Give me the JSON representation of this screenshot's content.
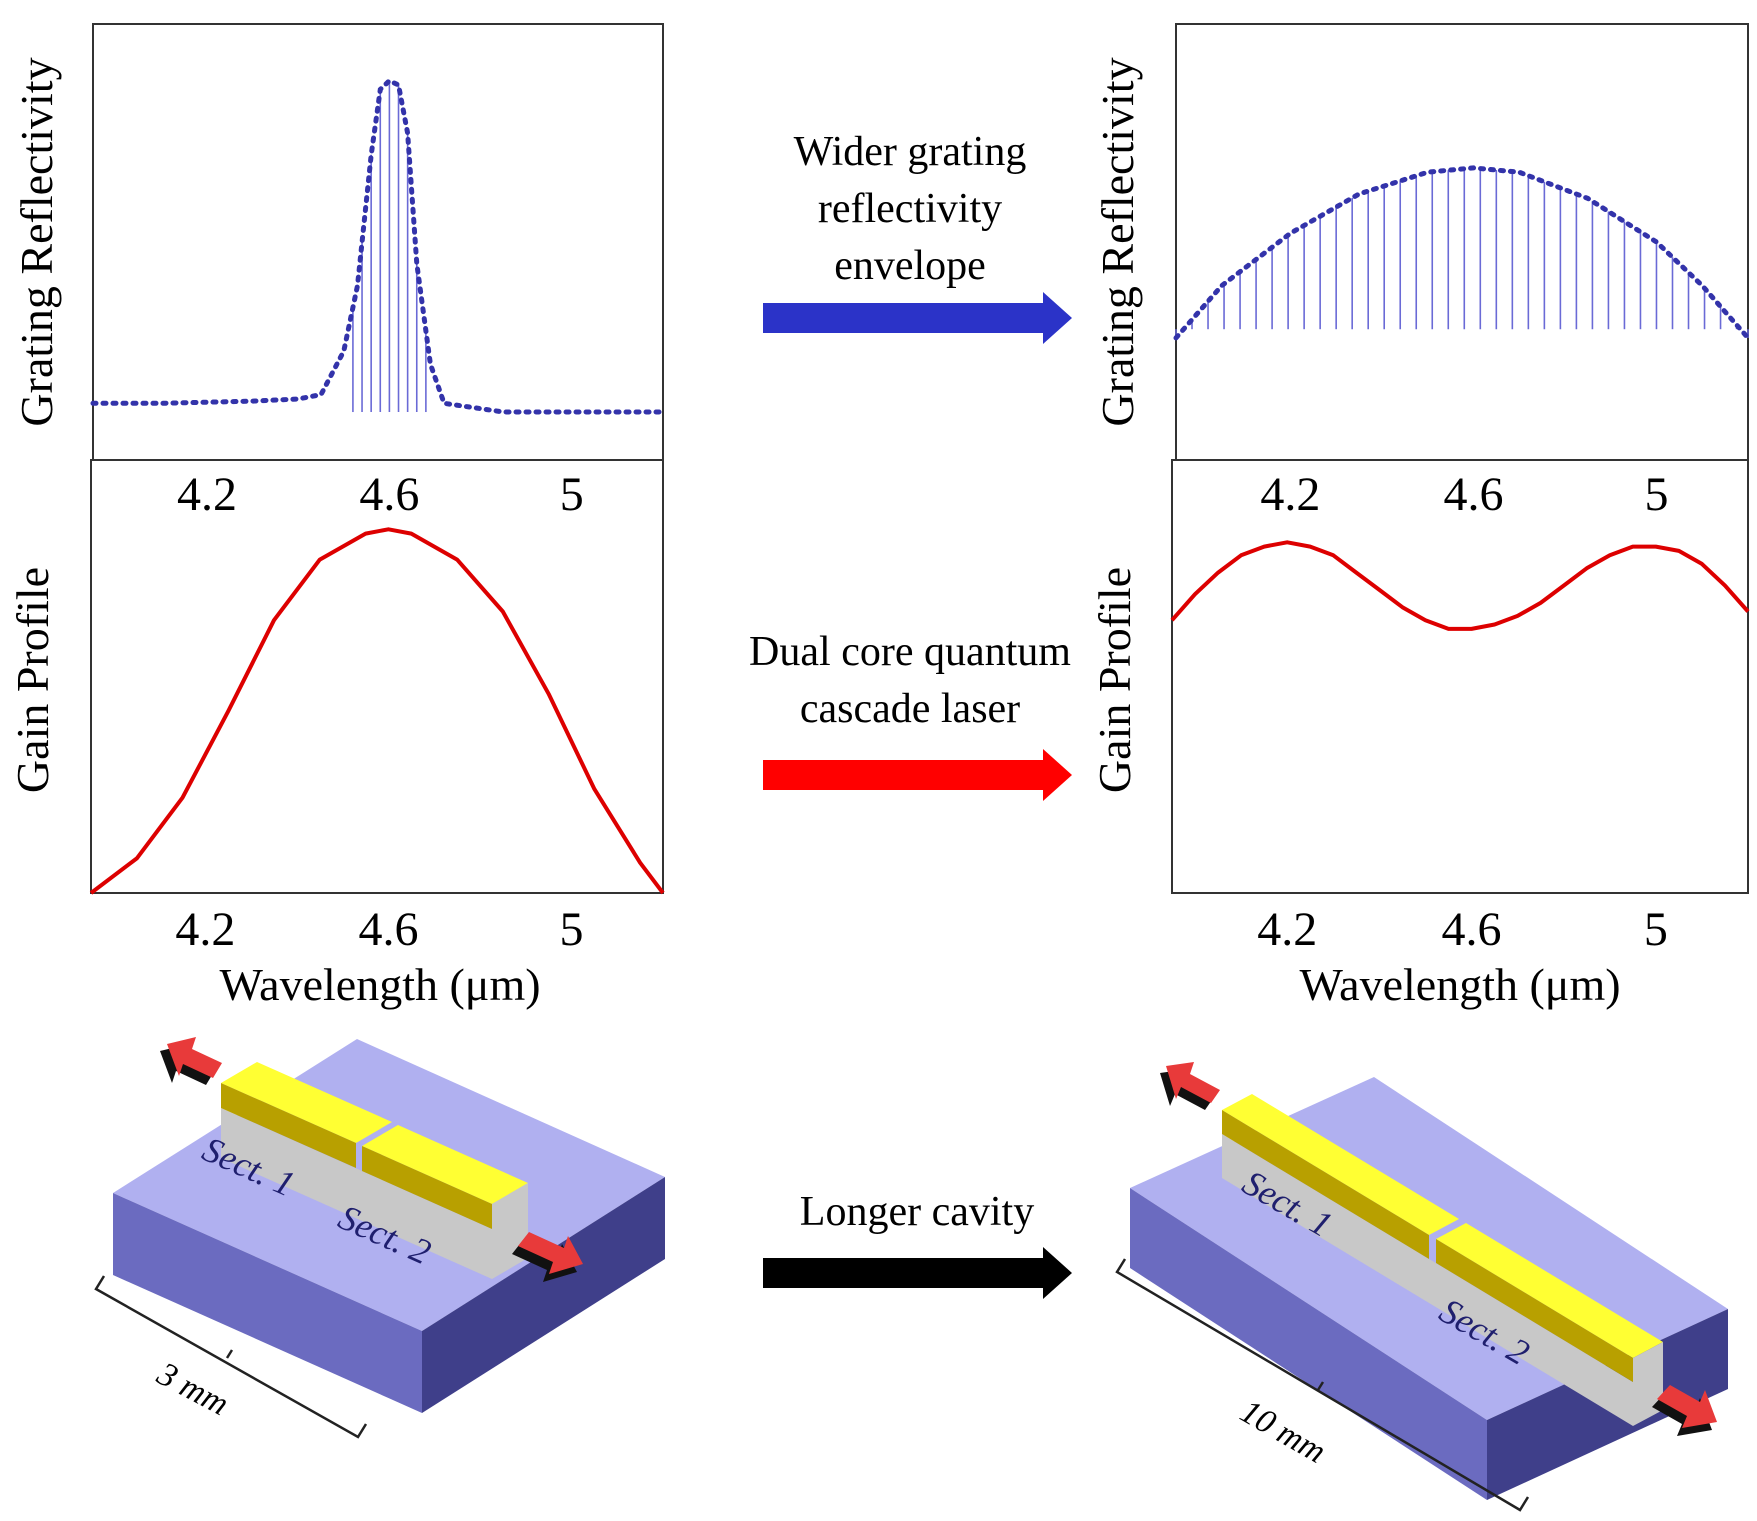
{
  "colors": {
    "dotted_envelope": "#3333aa",
    "stems": "#6a6ad6",
    "gain_curve": "#dd0000",
    "arrow_blue": "#2b33c8",
    "arrow_red": "#ff0000",
    "arrow_black": "#000000",
    "substrate_top": "#b0b0f0",
    "substrate_front": "#6b6bc0",
    "substrate_side": "#3f3f8a",
    "ridge_top": "#ffff33",
    "ridge_side": "#c8c8c8",
    "ridge_front": "#b8a000",
    "output_arrow": "#e83a3a"
  },
  "labels": {
    "grating_reflectivity": "Grating Reflectivity",
    "gain_profile": "Gain Profile",
    "wavelength": "Wavelength  (μm)",
    "arrow1": [
      "Wider grating",
      "reflectivity",
      "envelope"
    ],
    "arrow2": [
      "Dual core quantum",
      "cascade laser"
    ],
    "arrow3": "Longer cavity",
    "sect1": "Sect. 1",
    "sect2": "Sect. 2",
    "left_length": "3 mm",
    "right_length": "10 mm"
  },
  "chart_data": [
    {
      "id": "left-reflectivity",
      "type": "line",
      "style": "dotted envelope with vertical stems",
      "ylabel": "Grating Reflectivity",
      "xlabel": "",
      "ticks": [
        4.2,
        4.6,
        5
      ],
      "xlim": [
        3.95,
        5.2
      ],
      "ylim": [
        0,
        1
      ],
      "envelope": [
        [
          3.95,
          0.13
        ],
        [
          4.1,
          0.13
        ],
        [
          4.3,
          0.135
        ],
        [
          4.4,
          0.14
        ],
        [
          4.45,
          0.15
        ],
        [
          4.5,
          0.25
        ],
        [
          4.53,
          0.4
        ],
        [
          4.56,
          0.7
        ],
        [
          4.58,
          0.85
        ],
        [
          4.6,
          0.87
        ],
        [
          4.62,
          0.86
        ],
        [
          4.64,
          0.75
        ],
        [
          4.66,
          0.45
        ],
        [
          4.69,
          0.22
        ],
        [
          4.72,
          0.13
        ],
        [
          4.85,
          0.11
        ],
        [
          5.2,
          0.11
        ]
      ],
      "stems_x": [
        4.52,
        4.54,
        4.56,
        4.58,
        4.6,
        4.62,
        4.64,
        4.66,
        4.68
      ]
    },
    {
      "id": "right-reflectivity",
      "type": "line",
      "style": "dotted envelope with vertical stems",
      "ylabel": "Grating Reflectivity",
      "xlabel": "",
      "ticks": [
        4.2,
        4.6,
        5
      ],
      "xlim": [
        3.95,
        5.2
      ],
      "ylim": [
        0,
        1
      ],
      "envelope": [
        [
          3.95,
          0.28
        ],
        [
          4.05,
          0.4
        ],
        [
          4.2,
          0.52
        ],
        [
          4.35,
          0.61
        ],
        [
          4.5,
          0.66
        ],
        [
          4.6,
          0.67
        ],
        [
          4.7,
          0.66
        ],
        [
          4.85,
          0.6
        ],
        [
          5.0,
          0.5
        ],
        [
          5.1,
          0.4
        ],
        [
          5.2,
          0.28
        ]
      ],
      "stems_x": [
        3.95,
        3.985,
        4.02,
        4.055,
        4.09,
        4.125,
        4.16,
        4.195,
        4.23,
        4.265,
        4.3,
        4.335,
        4.37,
        4.405,
        4.44,
        4.475,
        4.51,
        4.545,
        4.58,
        4.615,
        4.65,
        4.685,
        4.72,
        4.755,
        4.79,
        4.825,
        4.86,
        4.895,
        4.93,
        4.965,
        5.0,
        5.035,
        5.07,
        5.105,
        5.14,
        5.175,
        5.2
      ]
    },
    {
      "id": "left-gain",
      "type": "line",
      "ylabel": "Gain Profile",
      "xlabel": "Wavelength  (μm)",
      "ticks": [
        4.2,
        4.6,
        5
      ],
      "xlim": [
        3.95,
        5.2
      ],
      "ylim": [
        0,
        1
      ],
      "x": [
        3.95,
        4.05,
        4.15,
        4.25,
        4.35,
        4.45,
        4.55,
        4.6,
        4.65,
        4.75,
        4.85,
        4.95,
        5.05,
        5.15,
        5.2
      ],
      "y": [
        0.0,
        0.08,
        0.22,
        0.42,
        0.63,
        0.77,
        0.83,
        0.84,
        0.83,
        0.77,
        0.65,
        0.46,
        0.24,
        0.07,
        0.0
      ]
    },
    {
      "id": "right-gain",
      "type": "line",
      "ylabel": "Gain Profile",
      "xlabel": "Wavelength  (μm)",
      "ticks": [
        4.2,
        4.6,
        5
      ],
      "xlim": [
        3.95,
        5.2
      ],
      "ylim": [
        0,
        1
      ],
      "x": [
        3.95,
        4.0,
        4.05,
        4.1,
        4.15,
        4.2,
        4.25,
        4.3,
        4.35,
        4.4,
        4.45,
        4.5,
        4.55,
        4.6,
        4.65,
        4.7,
        4.75,
        4.8,
        4.85,
        4.9,
        4.95,
        5.0,
        5.05,
        5.1,
        5.15,
        5.2
      ],
      "y": [
        0.63,
        0.69,
        0.74,
        0.78,
        0.8,
        0.81,
        0.8,
        0.78,
        0.74,
        0.7,
        0.66,
        0.63,
        0.61,
        0.61,
        0.62,
        0.64,
        0.67,
        0.71,
        0.75,
        0.78,
        0.8,
        0.8,
        0.79,
        0.76,
        0.71,
        0.65
      ]
    }
  ]
}
